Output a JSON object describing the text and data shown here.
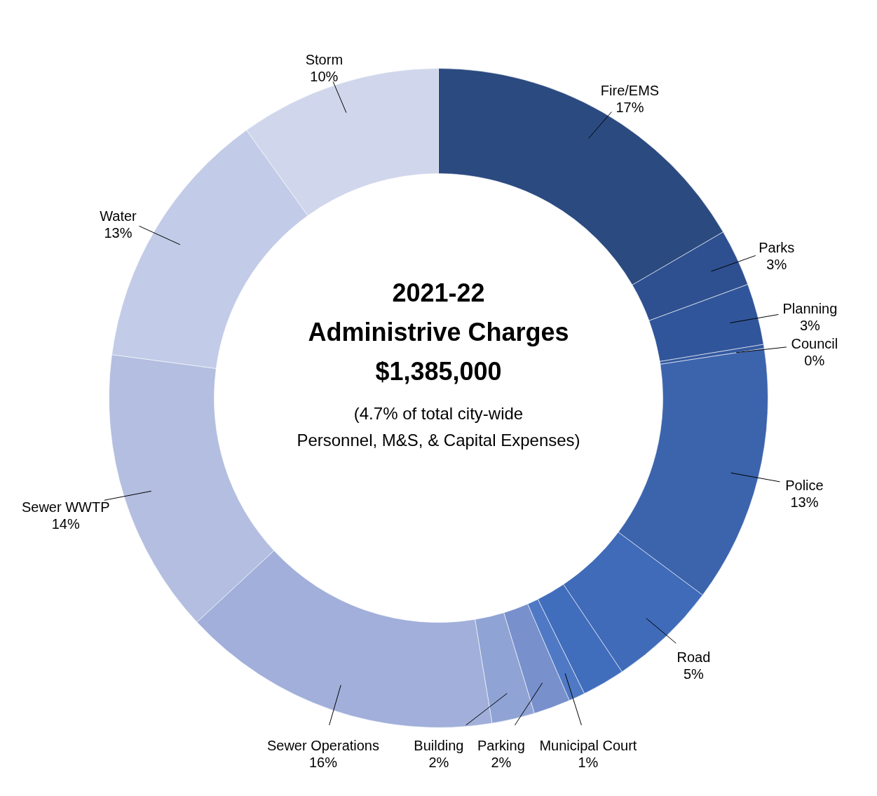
{
  "chart_data": {
    "type": "donut",
    "title": "2021-22\nAdministrive Charges",
    "subtitle": "(4.7% of total city-wide\nPersonnel, M&S, & Capital Expenses)",
    "annotations": [
      "$1,385,000"
    ],
    "categories": [
      "Fire/EMS",
      "Parks",
      "Planning",
      "Council",
      "Police",
      "Road",
      null,
      "Municipal Court",
      "Parking",
      "Building",
      "Sewer Operations",
      "Sewer WWTP",
      "Water",
      "Storm"
    ],
    "values": [
      16.6,
      2.8,
      3.0,
      0.2,
      12.6,
      5.4,
      2.1,
      0.8,
      1.8,
      2.1,
      15.7,
      14.0,
      13.0,
      9.9
    ],
    "value_labels": [
      "17%",
      "3%",
      "3%",
      "0%",
      "13%",
      "5%",
      null,
      "1%",
      "2%",
      "2%",
      "16%",
      "14%",
      "13%",
      "10%"
    ],
    "colors": [
      "#2b4a80",
      "#2e5090",
      "#31559a",
      "#3459a0",
      "#3c64ad",
      "#3f6bb8",
      "#416dbd",
      "#4f79c4",
      "#7890cc",
      "#8fa3d4",
      "#a1afda",
      "#b3bee0",
      "#c2cbe7",
      "#d0d6eb"
    ]
  }
}
